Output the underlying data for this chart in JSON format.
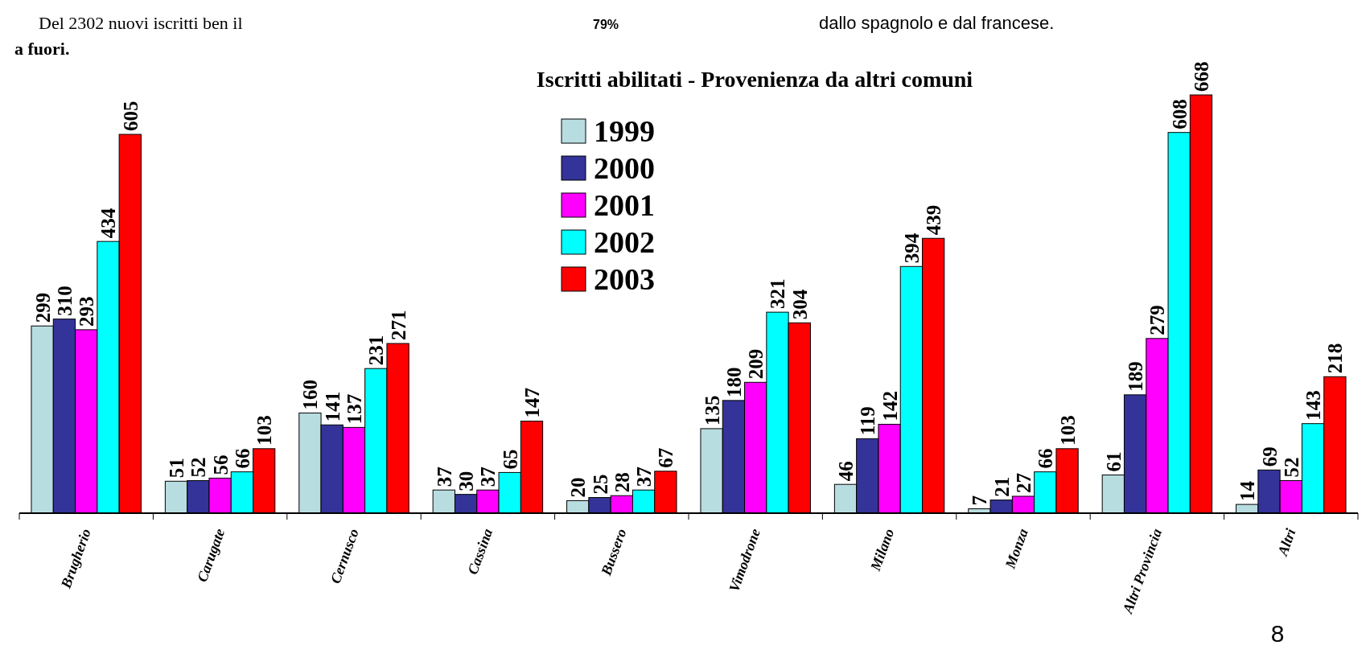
{
  "chart_data": {
    "type": "bar",
    "title": "Iscritti abilitati - Provenienza da altri comuni",
    "annotations": [
      "Del 2302 nuovi iscritti ben il",
      "a fuori.",
      "79%",
      "dallo spagnolo e dal francese.",
      "8"
    ],
    "categories": [
      "Brugherio",
      "Carugate",
      "Cernusco",
      "Cassina",
      "Bussero",
      "Vimodrone",
      "Milano",
      "Monza",
      "Altri Provincia",
      "Altri"
    ],
    "series": [
      {
        "name": "1999",
        "color": "#b8dde0",
        "values": [
          299,
          51,
          160,
          37,
          20,
          135,
          46,
          7,
          61,
          14
        ]
      },
      {
        "name": "2000",
        "color": "#333399",
        "values": [
          310,
          52,
          141,
          30,
          25,
          180,
          119,
          21,
          189,
          69
        ]
      },
      {
        "name": "2001",
        "color": "#ff00ff",
        "values": [
          293,
          56,
          137,
          37,
          28,
          209,
          142,
          27,
          279,
          52
        ]
      },
      {
        "name": "2002",
        "color": "#00ffff",
        "values": [
          434,
          66,
          231,
          65,
          37,
          321,
          394,
          66,
          608,
          143
        ]
      },
      {
        "name": "2003",
        "color": "#ff0000",
        "values": [
          605,
          103,
          271,
          147,
          67,
          304,
          439,
          103,
          668,
          218
        ]
      }
    ],
    "data_labels": true,
    "legend": "top"
  }
}
